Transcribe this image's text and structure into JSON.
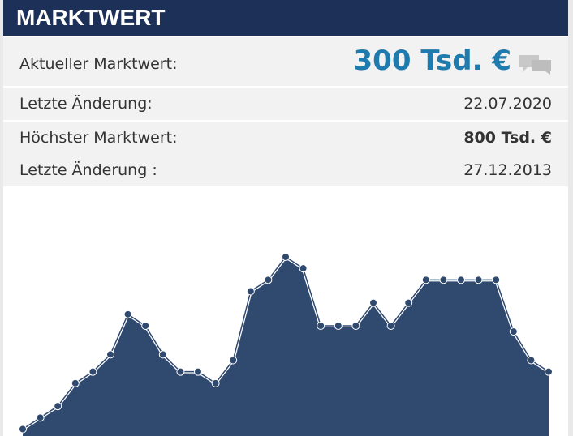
{
  "header": {
    "title": "MARKTWERT"
  },
  "rows": [
    {
      "label": "Aktueller Marktwert:",
      "value": "300 Tsd. €"
    },
    {
      "label": "Letzte Änderung:",
      "value": "22.07.2020"
    },
    {
      "label": "Höchster Marktwert:",
      "value": "800 Tsd. €"
    },
    {
      "label": "Letzte Änderung :",
      "value": "27.12.2013"
    }
  ],
  "chart_data": {
    "type": "area",
    "color": "#30496f",
    "categories": [
      null,
      null,
      null,
      null,
      null,
      null,
      null,
      null,
      null,
      null,
      null,
      null,
      null,
      null,
      null,
      null,
      null,
      null,
      null,
      null,
      null,
      null,
      null,
      null,
      null,
      null,
      null,
      null,
      null,
      null,
      null
    ],
    "values": [
      50,
      100,
      150,
      250,
      300,
      375,
      550,
      500,
      375,
      300,
      300,
      250,
      350,
      650,
      700,
      800,
      750,
      500,
      500,
      500,
      600,
      500,
      600,
      700,
      700,
      700,
      700,
      700,
      475,
      350,
      300
    ],
    "ylim": [
      20,
      1100
    ]
  }
}
